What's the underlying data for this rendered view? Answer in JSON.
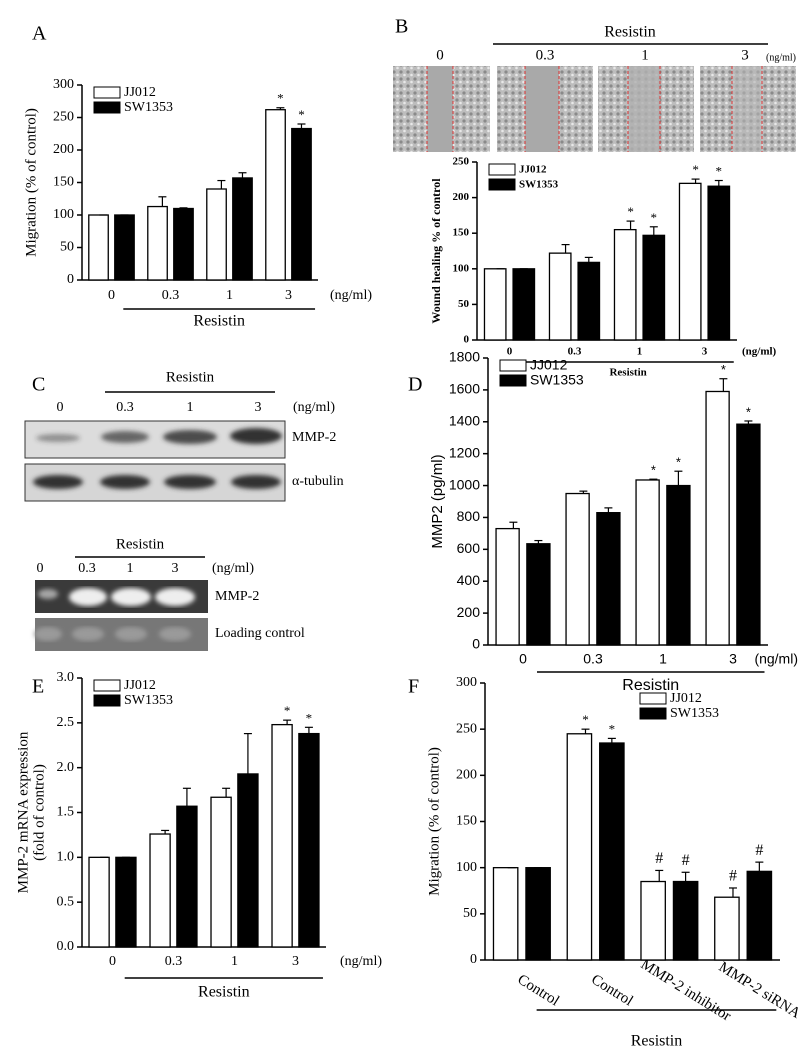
{
  "panel_labels": [
    "A",
    "B",
    "C",
    "D",
    "E",
    "F"
  ],
  "panel_b_images": {
    "group_label": "Resistin",
    "categories": [
      "0",
      "0.3",
      "1",
      "3"
    ],
    "unit": "(ng/ml)"
  },
  "panel_c": {
    "western": {
      "group_label": "Resistin",
      "categories": [
        "0",
        "0.3",
        "1",
        "3"
      ],
      "unit": "(ng/ml)",
      "bands": [
        "MMP-2",
        "α-tubulin"
      ]
    },
    "zymography": {
      "group_label": "Resistin",
      "categories": [
        "0",
        "0.3",
        "1",
        "3"
      ],
      "unit": "(ng/ml)",
      "bands": [
        "MMP-2",
        "Loading control"
      ]
    }
  },
  "chart_data": [
    {
      "type": "bar",
      "ylabel": "Migration (% of control)",
      "ylim": [
        0,
        300
      ],
      "yticks": [
        0,
        50,
        100,
        150,
        200,
        250,
        300
      ],
      "categories": [
        "0",
        "0.3",
        "1",
        "3"
      ],
      "unit": "(ng/ml)",
      "group_label": "Resistin",
      "legend": "upper left",
      "series": [
        {
          "name": "JJ012",
          "color": "#ffffff",
          "values": [
            100,
            113,
            140,
            262
          ],
          "errors": [
            0,
            15,
            13,
            3
          ],
          "marks": [
            null,
            null,
            null,
            "*"
          ]
        },
        {
          "name": "SW1353",
          "color": "#000000",
          "values": [
            100,
            110,
            157,
            233
          ],
          "errors": [
            0,
            1,
            8,
            7
          ],
          "marks": [
            null,
            null,
            null,
            "*"
          ]
        }
      ]
    },
    {
      "type": "bar",
      "ylabel": "Wound healing % of control",
      "ylim": [
        0,
        250
      ],
      "yticks": [
        0,
        50,
        100,
        150,
        200,
        250
      ],
      "categories": [
        "0",
        "0.3",
        "1",
        "3"
      ],
      "unit": "(ng/ml)",
      "group_label": "Resistin",
      "legend": "upper left",
      "series": [
        {
          "name": "JJ012",
          "color": "#ffffff",
          "values": [
            100,
            122,
            155,
            220
          ],
          "errors": [
            0,
            12,
            12,
            6
          ],
          "marks": [
            null,
            null,
            "*",
            "*"
          ]
        },
        {
          "name": "SW1353",
          "color": "#000000",
          "values": [
            100,
            109,
            147,
            216
          ],
          "errors": [
            0,
            7,
            12,
            8
          ],
          "marks": [
            null,
            null,
            "*",
            "*"
          ]
        }
      ]
    },
    {
      "type": "bar",
      "ylabel": "MMP2 (pg/ml)",
      "ylim": [
        0,
        1800
      ],
      "yticks": [
        0,
        200,
        400,
        600,
        800,
        1000,
        1200,
        1400,
        1600,
        1800
      ],
      "categories": [
        "0",
        "0.3",
        "1",
        "3"
      ],
      "unit": "(ng/ml)",
      "group_label": "Resistin",
      "legend": "upper left",
      "series": [
        {
          "name": "JJ012",
          "color": "#ffffff",
          "values": [
            730,
            950,
            1035,
            1590
          ],
          "errors": [
            40,
            15,
            5,
            80
          ],
          "marks": [
            null,
            null,
            "*",
            "*"
          ]
        },
        {
          "name": "SW1353",
          "color": "#000000",
          "values": [
            635,
            830,
            1000,
            1385
          ],
          "errors": [
            20,
            30,
            90,
            20
          ],
          "marks": [
            null,
            null,
            "*",
            "*"
          ]
        }
      ]
    },
    {
      "type": "bar",
      "ylabel": [
        "MMP-2 mRNA expression",
        "(fold of control)"
      ],
      "ylim": [
        0,
        3
      ],
      "yticks": [
        {
          "value": 0,
          "label": "0.0"
        },
        0.5,
        {
          "value": 1,
          "label": "1.0"
        },
        1.5,
        {
          "value": 2,
          "label": "2.0"
        },
        2.5,
        {
          "value": 3,
          "label": "3.0"
        }
      ],
      "categories": [
        "0",
        "0.3",
        "1",
        "3"
      ],
      "unit": "(ng/ml)",
      "group_label": "Resistin",
      "legend": "upper left",
      "series": [
        {
          "name": "JJ012",
          "color": "#ffffff",
          "values": [
            1.0,
            1.26,
            1.67,
            2.48
          ],
          "errors": [
            0,
            0.04,
            0.1,
            0.05
          ],
          "marks": [
            null,
            null,
            null,
            "*"
          ]
        },
        {
          "name": "SW1353",
          "color": "#000000",
          "values": [
            1.0,
            1.57,
            1.93,
            2.38
          ],
          "errors": [
            0,
            0.2,
            0.45,
            0.07
          ],
          "marks": [
            null,
            null,
            null,
            "*"
          ]
        }
      ]
    },
    {
      "type": "bar",
      "ylabel": "Migration (% of control)",
      "ylim": [
        0,
        300
      ],
      "yticks": [
        0,
        50,
        100,
        150,
        200,
        250,
        300
      ],
      "categories": [
        "Control",
        "Control",
        "MMP-2 inhibitor",
        "MMP-2 siRNA"
      ],
      "group_label": "Resistin",
      "legend": "upper right",
      "series": [
        {
          "name": "JJ012",
          "color": "#ffffff",
          "values": [
            100,
            245,
            85,
            68
          ],
          "errors": [
            0,
            5,
            12,
            10
          ],
          "marks": [
            null,
            "*",
            "#",
            "#"
          ]
        },
        {
          "name": "SW1353",
          "color": "#000000",
          "values": [
            100,
            235,
            85,
            96
          ],
          "errors": [
            0,
            5,
            10,
            10
          ],
          "marks": [
            null,
            "*",
            "#",
            "#"
          ]
        }
      ]
    }
  ]
}
